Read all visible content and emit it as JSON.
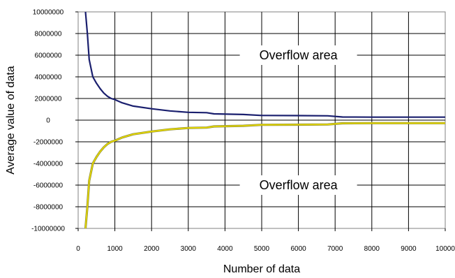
{
  "chart_data": {
    "type": "line",
    "title": "",
    "xlabel": "Number of data",
    "ylabel": "Average value of data",
    "xlim": [
      0,
      10000
    ],
    "ylim": [
      -10000000,
      10000000
    ],
    "x_ticks": [
      0,
      1000,
      2000,
      3000,
      4000,
      5000,
      6000,
      7000,
      8000,
      9000,
      10000
    ],
    "x_tick_labels": [
      "0",
      "1000",
      "2000",
      "3000",
      "4000",
      "5000",
      "6000",
      "7000",
      "8000",
      "9000",
      "10000"
    ],
    "y_ticks": [
      10000000,
      8000000,
      6000000,
      4000000,
      2000000,
      0,
      -2000000,
      -4000000,
      -6000000,
      -8000000,
      -10000000
    ],
    "y_tick_labels": [
      "10000000",
      "8000000",
      "6000000",
      "4000000",
      "2000000",
      "0",
      "-2000000",
      "-4000000",
      "-6000000",
      "-8000000",
      "-10000000"
    ],
    "grid": true,
    "annotations": [
      {
        "text": "Overflow area",
        "x": 6000,
        "y": 6000000
      },
      {
        "text": "Overflow area",
        "x": 6000,
        "y": -6000000
      }
    ],
    "series": [
      {
        "color": "#1a1f6e",
        "x": [
          200,
          250,
          300,
          400,
          500,
          600,
          700,
          800,
          900,
          1000,
          1200,
          1500,
          2000,
          2500,
          3000,
          3500,
          3700,
          4500,
          5000,
          6000,
          6800,
          7200,
          8000,
          9000,
          10000
        ],
        "y": [
          10000000,
          8000000,
          5600000,
          4000000,
          3400000,
          2900000,
          2500000,
          2200000,
          2000000,
          1900000,
          1600000,
          1300000,
          1050000,
          850000,
          720000,
          690000,
          580000,
          520000,
          430000,
          420000,
          400000,
          290000,
          280000,
          280000,
          280000
        ]
      },
      {
        "color": "#e6d800",
        "x": [
          200,
          250,
          300,
          400,
          500,
          600,
          700,
          800,
          900,
          1000,
          1200,
          1500,
          2000,
          2500,
          3000,
          3500,
          3700,
          4500,
          5000,
          6000,
          6800,
          7200,
          8000,
          9000,
          10000
        ],
        "y": [
          -10000000,
          -8000000,
          -5600000,
          -4000000,
          -3400000,
          -2900000,
          -2500000,
          -2200000,
          -2000000,
          -1900000,
          -1600000,
          -1300000,
          -1050000,
          -850000,
          -720000,
          -690000,
          -580000,
          -520000,
          -430000,
          -420000,
          -400000,
          -290000,
          -280000,
          -280000,
          -280000
        ]
      }
    ]
  }
}
